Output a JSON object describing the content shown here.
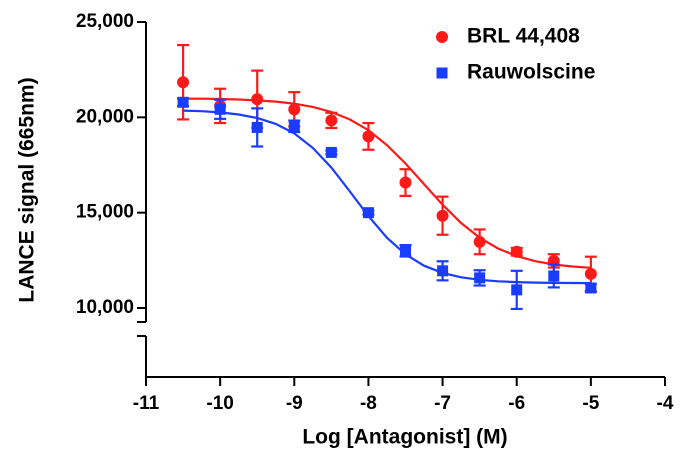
{
  "chart_data": {
    "type": "scatter",
    "xlabel": "Log [Antagonist] (M)",
    "ylabel": "LANCE signal (665nm)",
    "xlim": [
      -11,
      -4
    ],
    "xticks": [
      -11,
      -10,
      -9,
      -8,
      -7,
      -6,
      -5,
      -4
    ],
    "ylim": [
      10000,
      25000
    ],
    "yticks": [
      {
        "value": 10000,
        "label": "10,000"
      },
      {
        "value": 15000,
        "label": "15,000"
      },
      {
        "value": 20000,
        "label": "20,000"
      },
      {
        "value": 25000,
        "label": "25,000"
      }
    ],
    "legend": "upper right",
    "x": [
      -10.5,
      -10,
      -9.5,
      -9,
      -8.5,
      -8,
      -7.5,
      -7,
      -6.5,
      -6,
      -5.5,
      -5
    ],
    "series": [
      {
        "name": "BRL 44,408",
        "color": "#ff1a1a",
        "marker": "circle",
        "values": [
          21840,
          20600,
          20950,
          20420,
          19840,
          19000,
          16580,
          14840,
          13470,
          12950,
          12470,
          11790
        ],
        "errors": [
          1950,
          900,
          1500,
          900,
          400,
          700,
          700,
          1000,
          650,
          200,
          350,
          900
        ],
        "fit": {
          "x": [
            -10.5,
            -10.25,
            -10,
            -9.75,
            -9.5,
            -9.25,
            -9,
            -8.75,
            -8.5,
            -8.25,
            -8,
            -7.75,
            -7.5,
            -7.25,
            -7,
            -6.75,
            -6.5,
            -6.25,
            -6,
            -5.75,
            -5.5,
            -5.25,
            -5
          ],
          "values": [
            20985,
            20975,
            20959,
            20933,
            20890,
            20824,
            20716,
            20547,
            20280,
            19888,
            19323,
            18541,
            17580,
            16500,
            15419,
            14459,
            13685,
            13114,
            12720,
            12455,
            12282,
            12176,
            12109
          ]
        }
      },
      {
        "name": "Rauwolscine",
        "color": "#1a3cff",
        "marker": "square",
        "values": [
          20790,
          20420,
          19470,
          19530,
          18160,
          15000,
          13000,
          11950,
          11580,
          10950,
          11680,
          11050
        ],
        "errors": [
          200,
          500,
          1000,
          300,
          100,
          100,
          300,
          500,
          400,
          1000,
          600,
          200
        ],
        "fit": {
          "x": [
            -10.5,
            -10.25,
            -10,
            -9.75,
            -9.5,
            -9.25,
            -9,
            -8.75,
            -8.5,
            -8.25,
            -8,
            -7.75,
            -7.5,
            -7.25,
            -7,
            -6.75,
            -6.5,
            -6.25,
            -6,
            -5.75,
            -5.5,
            -5.25,
            -5
          ],
          "values": [
            20355,
            20320,
            20258,
            20150,
            19966,
            19655,
            19157,
            18398,
            17363,
            16112,
            14820,
            13683,
            12814,
            12218,
            11840,
            11612,
            11478,
            11401,
            11357,
            11332,
            11318,
            11310,
            11306
          ]
        }
      }
    ]
  }
}
